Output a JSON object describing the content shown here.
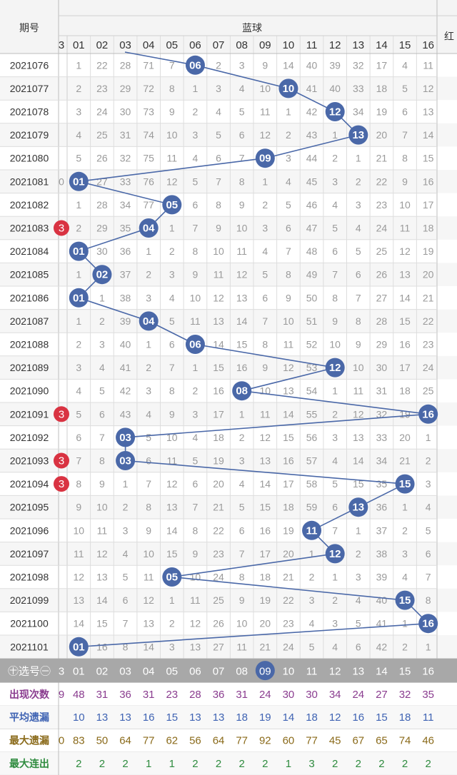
{
  "header": {
    "period_label": "期号",
    "blue_label": "蓝球",
    "red_label": "红"
  },
  "columns": [
    "01",
    "02",
    "03",
    "04",
    "05",
    "06",
    "07",
    "08",
    "09",
    "10",
    "11",
    "12",
    "13",
    "14",
    "15",
    "16"
  ],
  "left_cut_col": "3",
  "colors": {
    "ball": "#4a68a8",
    "ball_line": "#4a68a8",
    "red_ball": "#d93342",
    "grid": "#dddddd",
    "row_alt": "#f6f6f6",
    "selector_bg": "#a8a8a8",
    "stat_freq": "#8a3c8f",
    "stat_avg": "#3f63b3",
    "stat_max": "#8a6a1a",
    "stat_cons": "#2e8b3e"
  },
  "rows": [
    {
      "period": "2021076",
      "hit": 6,
      "cells": [
        "1",
        "22",
        "28",
        "71",
        "7",
        "06",
        "2",
        "3",
        "9",
        "14",
        "40",
        "39",
        "32",
        "17",
        "4",
        "11"
      ],
      "left": "",
      "red": false
    },
    {
      "period": "2021077",
      "hit": 10,
      "cells": [
        "2",
        "23",
        "29",
        "72",
        "8",
        "1",
        "3",
        "4",
        "10",
        "10",
        "41",
        "40",
        "33",
        "18",
        "5",
        "12"
      ],
      "left": "",
      "red": false
    },
    {
      "period": "2021078",
      "hit": 12,
      "cells": [
        "3",
        "24",
        "30",
        "73",
        "9",
        "2",
        "4",
        "5",
        "11",
        "1",
        "42",
        "12",
        "34",
        "19",
        "6",
        "13"
      ],
      "left": "",
      "red": false
    },
    {
      "period": "2021079",
      "hit": 13,
      "cells": [
        "4",
        "25",
        "31",
        "74",
        "10",
        "3",
        "5",
        "6",
        "12",
        "2",
        "43",
        "1",
        "13",
        "20",
        "7",
        "14"
      ],
      "left": "",
      "red": false
    },
    {
      "period": "2021080",
      "hit": 9,
      "cells": [
        "5",
        "26",
        "32",
        "75",
        "11",
        "4",
        "6",
        "7",
        "09",
        "3",
        "44",
        "2",
        "1",
        "21",
        "8",
        "15"
      ],
      "left": "",
      "red": false
    },
    {
      "period": "2021081",
      "hit": 1,
      "cells": [
        "01",
        "27",
        "33",
        "76",
        "12",
        "5",
        "7",
        "8",
        "1",
        "4",
        "45",
        "3",
        "2",
        "22",
        "9",
        "16"
      ],
      "left": "0",
      "red": false
    },
    {
      "period": "2021082",
      "hit": 5,
      "cells": [
        "1",
        "28",
        "34",
        "77",
        "05",
        "6",
        "8",
        "9",
        "2",
        "5",
        "46",
        "4",
        "3",
        "23",
        "10",
        "17"
      ],
      "left": "",
      "red": false
    },
    {
      "period": "2021083",
      "hit": 4,
      "cells": [
        "2",
        "29",
        "35",
        "04",
        "1",
        "7",
        "9",
        "10",
        "3",
        "6",
        "47",
        "5",
        "4",
        "24",
        "11",
        "18"
      ],
      "left": "3",
      "red": true
    },
    {
      "period": "2021084",
      "hit": 1,
      "cells": [
        "01",
        "30",
        "36",
        "1",
        "2",
        "8",
        "10",
        "11",
        "4",
        "7",
        "48",
        "6",
        "5",
        "25",
        "12",
        "19"
      ],
      "left": "",
      "red": false
    },
    {
      "period": "2021085",
      "hit": 2,
      "cells": [
        "1",
        "02",
        "37",
        "2",
        "3",
        "9",
        "11",
        "12",
        "5",
        "8",
        "49",
        "7",
        "6",
        "26",
        "13",
        "20"
      ],
      "left": "",
      "red": false
    },
    {
      "period": "2021086",
      "hit": 1,
      "cells": [
        "01",
        "1",
        "38",
        "3",
        "4",
        "10",
        "12",
        "13",
        "6",
        "9",
        "50",
        "8",
        "7",
        "27",
        "14",
        "21"
      ],
      "left": "",
      "red": false
    },
    {
      "period": "2021087",
      "hit": 4,
      "cells": [
        "1",
        "2",
        "39",
        "04",
        "5",
        "11",
        "13",
        "14",
        "7",
        "10",
        "51",
        "9",
        "8",
        "28",
        "15",
        "22"
      ],
      "left": "",
      "red": false
    },
    {
      "period": "2021088",
      "hit": 6,
      "cells": [
        "2",
        "3",
        "40",
        "1",
        "6",
        "06",
        "14",
        "15",
        "8",
        "11",
        "52",
        "10",
        "9",
        "29",
        "16",
        "23"
      ],
      "left": "",
      "red": false
    },
    {
      "period": "2021089",
      "hit": 12,
      "cells": [
        "3",
        "4",
        "41",
        "2",
        "7",
        "1",
        "15",
        "16",
        "9",
        "12",
        "53",
        "12",
        "10",
        "30",
        "17",
        "24"
      ],
      "left": "",
      "red": false
    },
    {
      "period": "2021090",
      "hit": 8,
      "cells": [
        "4",
        "5",
        "42",
        "3",
        "8",
        "2",
        "16",
        "08",
        "10",
        "13",
        "54",
        "1",
        "11",
        "31",
        "18",
        "25"
      ],
      "left": "",
      "red": false
    },
    {
      "period": "2021091",
      "hit": 16,
      "cells": [
        "5",
        "6",
        "43",
        "4",
        "9",
        "3",
        "17",
        "1",
        "11",
        "14",
        "55",
        "2",
        "12",
        "32",
        "19",
        "16"
      ],
      "left": "3",
      "red": true
    },
    {
      "period": "2021092",
      "hit": 3,
      "cells": [
        "6",
        "7",
        "03",
        "5",
        "10",
        "4",
        "18",
        "2",
        "12",
        "15",
        "56",
        "3",
        "13",
        "33",
        "20",
        "1"
      ],
      "left": "",
      "red": false
    },
    {
      "period": "2021093",
      "hit": 3,
      "cells": [
        "7",
        "8",
        "03",
        "6",
        "11",
        "5",
        "19",
        "3",
        "13",
        "16",
        "57",
        "4",
        "14",
        "34",
        "21",
        "2"
      ],
      "left": "3",
      "red": true
    },
    {
      "period": "2021094",
      "hit": 15,
      "cells": [
        "8",
        "9",
        "1",
        "7",
        "12",
        "6",
        "20",
        "4",
        "14",
        "17",
        "58",
        "5",
        "15",
        "35",
        "15",
        "3"
      ],
      "left": "3",
      "red": true
    },
    {
      "period": "2021095",
      "hit": 13,
      "cells": [
        "9",
        "10",
        "2",
        "8",
        "13",
        "7",
        "21",
        "5",
        "15",
        "18",
        "59",
        "6",
        "13",
        "36",
        "1",
        "4"
      ],
      "left": "",
      "red": false
    },
    {
      "period": "2021096",
      "hit": 11,
      "cells": [
        "10",
        "11",
        "3",
        "9",
        "14",
        "8",
        "22",
        "6",
        "16",
        "19",
        "11",
        "7",
        "1",
        "37",
        "2",
        "5"
      ],
      "left": "",
      "red": false
    },
    {
      "period": "2021097",
      "hit": 12,
      "cells": [
        "11",
        "12",
        "4",
        "10",
        "15",
        "9",
        "23",
        "7",
        "17",
        "20",
        "1",
        "12",
        "2",
        "38",
        "3",
        "6"
      ],
      "left": "",
      "red": false
    },
    {
      "period": "2021098",
      "hit": 5,
      "cells": [
        "12",
        "13",
        "5",
        "11",
        "05",
        "10",
        "24",
        "8",
        "18",
        "21",
        "2",
        "1",
        "3",
        "39",
        "4",
        "7"
      ],
      "left": "",
      "red": false
    },
    {
      "period": "2021099",
      "hit": 15,
      "cells": [
        "13",
        "14",
        "6",
        "12",
        "1",
        "11",
        "25",
        "9",
        "19",
        "22",
        "3",
        "2",
        "4",
        "40",
        "15",
        "8"
      ],
      "left": "",
      "red": false
    },
    {
      "period": "2021100",
      "hit": 16,
      "cells": [
        "14",
        "15",
        "7",
        "13",
        "2",
        "12",
        "26",
        "10",
        "20",
        "23",
        "4",
        "3",
        "5",
        "41",
        "1",
        "16"
      ],
      "left": "",
      "red": false
    },
    {
      "period": "2021101",
      "hit": 1,
      "cells": [
        "01",
        "16",
        "8",
        "14",
        "3",
        "13",
        "27",
        "11",
        "21",
        "24",
        "5",
        "4",
        "6",
        "42",
        "2",
        "1"
      ],
      "left": "",
      "red": false
    }
  ],
  "selector": {
    "label": "㊉选号㊀",
    "left": "3",
    "selected_index": 8
  },
  "stats": [
    {
      "label": "出现次数",
      "left": "9",
      "values": [
        "48",
        "31",
        "36",
        "31",
        "23",
        "28",
        "36",
        "31",
        "24",
        "30",
        "30",
        "34",
        "24",
        "27",
        "32",
        "35"
      ]
    },
    {
      "label": "平均遗漏",
      "left": "",
      "values": [
        "10",
        "13",
        "13",
        "16",
        "15",
        "13",
        "13",
        "18",
        "19",
        "14",
        "18",
        "12",
        "16",
        "15",
        "18",
        "11"
      ]
    },
    {
      "label": "最大遗漏",
      "left": "0",
      "values": [
        "83",
        "50",
        "64",
        "77",
        "62",
        "56",
        "64",
        "77",
        "92",
        "60",
        "77",
        "45",
        "67",
        "65",
        "74",
        "46"
      ]
    },
    {
      "label": "最大连出",
      "left": "",
      "values": [
        "2",
        "2",
        "2",
        "1",
        "1",
        "2",
        "2",
        "2",
        "2",
        "1",
        "3",
        "2",
        "2",
        "2",
        "2",
        "2"
      ]
    }
  ]
}
